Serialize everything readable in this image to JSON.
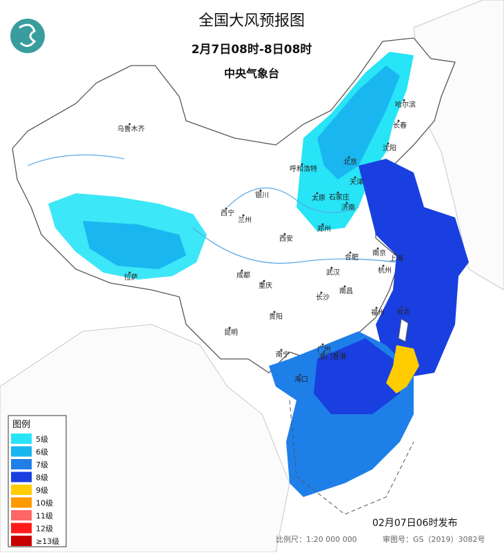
{
  "header": {
    "title": "全国大风预报图",
    "period": "2月7日08时-8日08时",
    "issuer": "中央气象台"
  },
  "legend": {
    "title": "图例",
    "items": [
      {
        "label": "5级",
        "color": "#27e4f6"
      },
      {
        "label": "6级",
        "color": "#1ab6f0"
      },
      {
        "label": "7级",
        "color": "#1f7fe8"
      },
      {
        "label": "8级",
        "color": "#1a3fe0"
      },
      {
        "label": "9级",
        "color": "#ffcc00"
      },
      {
        "label": "10级",
        "color": "#ff9900"
      },
      {
        "label": "11级",
        "color": "#ff6666"
      },
      {
        "label": "12级",
        "color": "#ff1a1a"
      },
      {
        "label": "≥13级",
        "color": "#c80000"
      }
    ]
  },
  "cities": [
    "乌鲁木齐",
    "哈尔滨",
    "长春",
    "沈阳",
    "北京",
    "天津",
    "呼和浩特",
    "太原",
    "石家庄",
    "济南",
    "银川",
    "西宁",
    "兰州",
    "郑州",
    "西安",
    "合肥",
    "南京",
    "上海",
    "武汉",
    "杭州",
    "成都",
    "重庆",
    "拉萨",
    "长沙",
    "南昌",
    "贵阳",
    "福州",
    "台北",
    "昆明",
    "广州",
    "南宁",
    "澳门",
    "香港",
    "海口"
  ],
  "footer": {
    "published": "02月07日06时发布",
    "scale": "比例尺：1:20 000 000",
    "approval": "审图号：GS（2019）3082号"
  }
}
